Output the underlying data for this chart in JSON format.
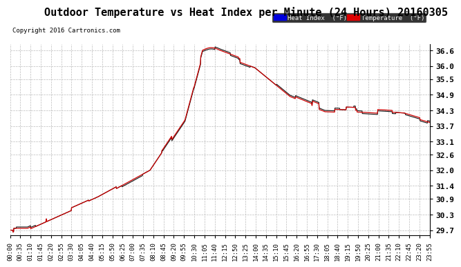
{
  "title": "Outdoor Temperature vs Heat Index per Minute (24 Hours) 20160305",
  "copyright": "Copyright 2016 Cartronics.com",
  "legend_labels": [
    "Heat Index  (°F)",
    "Temperature  (°F)"
  ],
  "legend_colors": [
    "#0000dd",
    "#dd0000"
  ],
  "ylabel_right_ticks": [
    29.7,
    30.3,
    30.9,
    31.4,
    32.0,
    32.6,
    33.1,
    33.7,
    34.3,
    34.9,
    35.5,
    36.0,
    36.6
  ],
  "ylim": [
    29.5,
    36.85
  ],
  "bg_color": "#ffffff",
  "plot_bg_color": "#ffffff",
  "grid_color": "#bbbbbb",
  "title_fontsize": 11,
  "tick_fontsize": 6.5,
  "x_tick_labels": [
    "00:00",
    "00:35",
    "01:10",
    "01:45",
    "02:20",
    "02:55",
    "03:30",
    "04:05",
    "04:40",
    "05:15",
    "05:50",
    "06:25",
    "07:00",
    "07:35",
    "08:10",
    "08:45",
    "09:20",
    "09:55",
    "10:30",
    "11:05",
    "11:40",
    "12:15",
    "12:50",
    "13:25",
    "14:00",
    "14:35",
    "15:10",
    "15:45",
    "16:20",
    "16:55",
    "17:30",
    "18:05",
    "18:40",
    "19:15",
    "19:50",
    "20:25",
    "21:00",
    "21:35",
    "22:10",
    "22:45",
    "23:20",
    "23:55"
  ],
  "n_minutes": 1440
}
